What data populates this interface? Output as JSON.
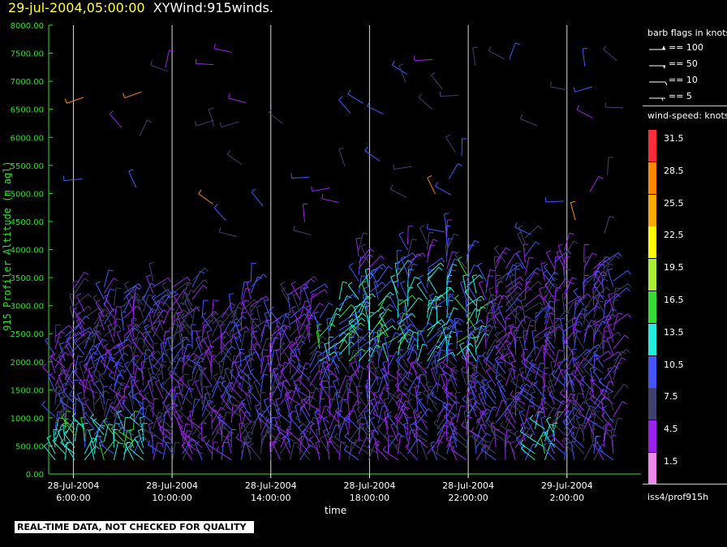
{
  "header": {
    "timestamp": "29-jul-2004,05:00:00",
    "title": "XYWind:915winds."
  },
  "footer": {
    "disclaimer": "REAL-TIME DATA, NOT CHECKED FOR QUALITY"
  },
  "legend": {
    "barb_title": "barb flags in knots",
    "barbs": [
      {
        "label": "== 100"
      },
      {
        "label": "== 50"
      },
      {
        "label": "== 10"
      },
      {
        "label": "== 5"
      }
    ],
    "speed_title": "wind-speed: knots",
    "colorbar": [
      {
        "label": "31.5",
        "color": "#ff2a3a"
      },
      {
        "label": "28.5",
        "color": "#ff8800"
      },
      {
        "label": "25.5",
        "color": "#ffaa00"
      },
      {
        "label": "22.5",
        "color": "#ffff00"
      },
      {
        "label": "19.5",
        "color": "#aaee33"
      },
      {
        "label": "16.5",
        "color": "#33dd33"
      },
      {
        "label": "13.5",
        "color": "#22eedd"
      },
      {
        "label": "10.5",
        "color": "#4455ff"
      },
      {
        "label": "7.5",
        "color": "#404070"
      },
      {
        "label": "4.5",
        "color": "#9922ee"
      },
      {
        "label": "1.5",
        "color": "#ee88ee"
      }
    ],
    "station": "iss4/prof915h"
  },
  "chart_data": {
    "type": "scatter",
    "xlabel": "time",
    "ylabel": "915 Profiler Altitude (m agl)",
    "ylim": [
      0,
      8000
    ],
    "grid": "vertical lines at major ticks",
    "yticks": [
      "0.00",
      "500.00",
      "1000.00",
      "1500.00",
      "2000.00",
      "2500.00",
      "3000.00",
      "3500.00",
      "4000.00",
      "4500.00",
      "5000.00",
      "5500.00",
      "6000.00",
      "6500.00",
      "7000.00",
      "7500.00",
      "8000.00"
    ],
    "xticks": [
      {
        "date": "28-Jul-2004",
        "time": "6:00:00"
      },
      {
        "date": "28-Jul-2004",
        "time": "10:00:00"
      },
      {
        "date": "28-Jul-2004",
        "time": "14:00:00"
      },
      {
        "date": "28-Jul-2004",
        "time": "18:00:00"
      },
      {
        "date": "28-Jul-2004",
        "time": "22:00:00"
      },
      {
        "date": "29-Jul-2004",
        "time": "2:00:00"
      }
    ],
    "xlim_hours": [
      5.0,
      29.0
    ],
    "series_note": "wind barbs drawn at each profiler gate, colored by speed class"
  }
}
